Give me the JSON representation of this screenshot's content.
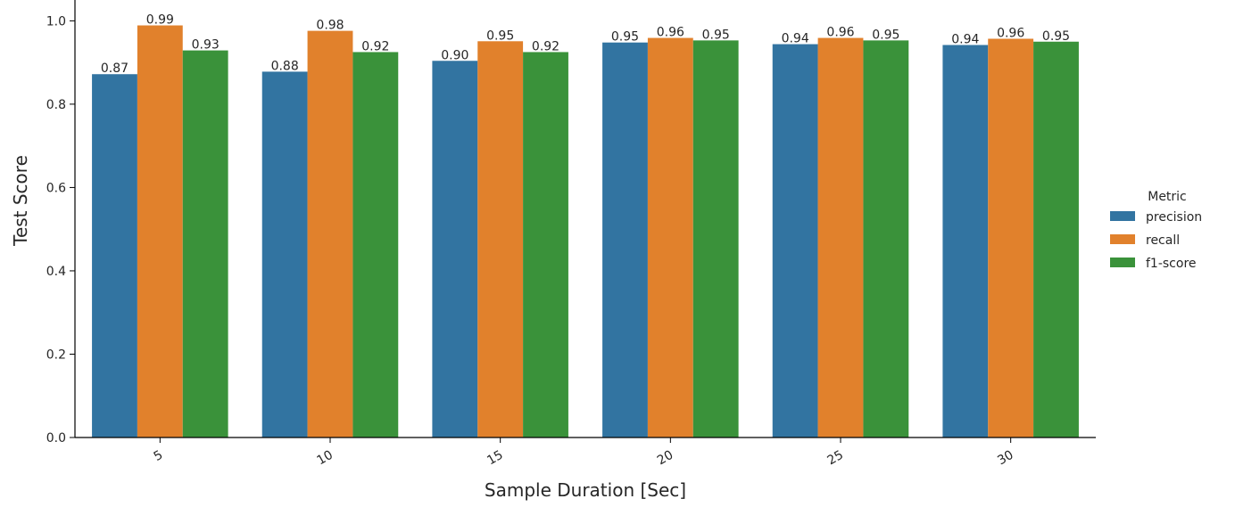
{
  "chart_data": {
    "type": "bar",
    "title": "",
    "xlabel": "Sample Duration [Sec]",
    "ylabel": "Test Score",
    "categories": [
      "5",
      "10",
      "15",
      "20",
      "25",
      "30"
    ],
    "ylim": [
      0,
      1.05
    ],
    "yticks": [
      "0.0",
      "0.2",
      "0.4",
      "0.6",
      "0.8",
      "1.0"
    ],
    "grid": false,
    "legend": {
      "title": "Metric",
      "placement": "right"
    },
    "series": [
      {
        "name": "precision",
        "color": "#3274a1",
        "values": [
          0.872,
          0.878,
          0.904,
          0.948,
          0.944,
          0.942
        ],
        "labels": [
          "0.87",
          "0.88",
          "0.90",
          "0.95",
          "0.94",
          "0.94"
        ]
      },
      {
        "name": "recall",
        "color": "#e1812c",
        "values": [
          0.989,
          0.976,
          0.951,
          0.959,
          0.959,
          0.957
        ],
        "labels": [
          "0.99",
          "0.98",
          "0.95",
          "0.96",
          "0.96",
          "0.96"
        ]
      },
      {
        "name": "f1-score",
        "color": "#3a923a",
        "values": [
          0.929,
          0.925,
          0.925,
          0.953,
          0.953,
          0.95
        ],
        "labels": [
          "0.93",
          "0.92",
          "0.92",
          "0.95",
          "0.95",
          "0.95"
        ]
      }
    ]
  }
}
